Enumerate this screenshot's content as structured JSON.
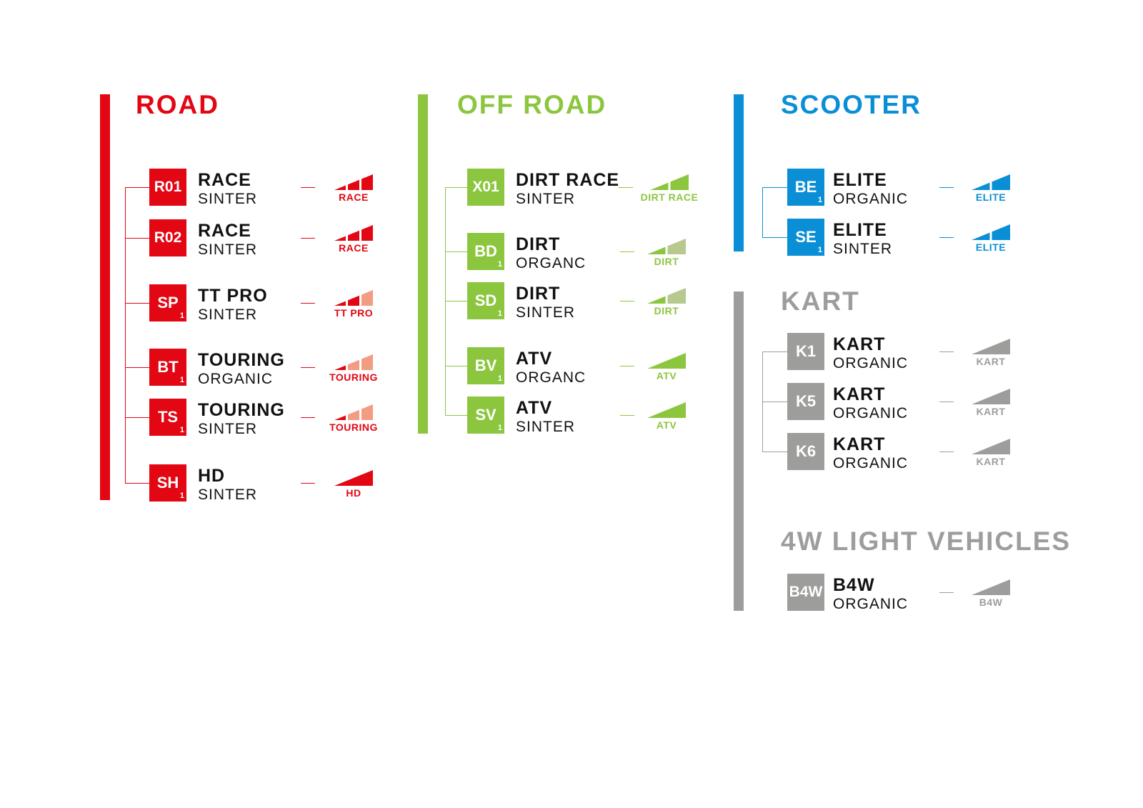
{
  "colors": {
    "road": "#e30613",
    "road_light": "#f29c82",
    "offroad": "#8cc63f",
    "offroad_light": "#b8c98f",
    "scooter": "#0a8fd6",
    "kart": "#9d9d9c"
  },
  "groups": [
    {
      "key": "road",
      "title": "ROAD",
      "color": "#e30613",
      "items": [
        {
          "code": "R01",
          "sub": "",
          "name": "RACE",
          "material": "SINTER",
          "label": "RACE",
          "segments": [
            1,
            1,
            1
          ]
        },
        {
          "code": "R02",
          "sub": "",
          "name": "RACE",
          "material": "SINTER",
          "label": "RACE",
          "segments": [
            1,
            1,
            1
          ]
        },
        {
          "code": "SP",
          "sub": "1",
          "name": "TT PRO",
          "material": "SINTER",
          "label": "TT PRO",
          "segments": [
            1,
            1,
            0
          ]
        },
        {
          "code": "BT",
          "sub": "1",
          "name": "TOURING",
          "material": "ORGANIC",
          "label": "TOURING",
          "segments": [
            1,
            0,
            0
          ]
        },
        {
          "code": "TS",
          "sub": "1",
          "name": "TOURING",
          "material": "SINTER",
          "label": "TOURING",
          "segments": [
            1,
            0,
            0
          ]
        },
        {
          "code": "SH",
          "sub": "1",
          "name": "HD",
          "material": "SINTER",
          "label": "HD",
          "segments": [
            1
          ]
        }
      ]
    },
    {
      "key": "offroad",
      "title": "OFF ROAD",
      "color": "#8cc63f",
      "items": [
        {
          "code": "X01",
          "sub": "",
          "name": "DIRT RACE",
          "material": "SINTER",
          "label": "DIRT RACE",
          "segments": [
            1,
            1
          ]
        },
        {
          "code": "BD",
          "sub": "1",
          "name": "DIRT",
          "material": "ORGANC",
          "label": "DIRT",
          "segments": [
            1,
            0
          ]
        },
        {
          "code": "SD",
          "sub": "1",
          "name": "DIRT",
          "material": "SINTER",
          "label": "DIRT",
          "segments": [
            1,
            0
          ]
        },
        {
          "code": "BV",
          "sub": "1",
          "name": "ATV",
          "material": "ORGANC",
          "label": "ATV",
          "segments": [
            1
          ]
        },
        {
          "code": "SV",
          "sub": "1",
          "name": "ATV",
          "material": "SINTER",
          "label": "ATV",
          "segments": [
            1
          ]
        }
      ]
    },
    {
      "key": "scooter",
      "title": "SCOOTER",
      "color": "#0a8fd6",
      "items": [
        {
          "code": "BE",
          "sub": "1",
          "name": "ELITE",
          "material": "ORGANIC",
          "label": "ELITE",
          "segments": [
            1,
            1
          ]
        },
        {
          "code": "SE",
          "sub": "1",
          "name": "ELITE",
          "material": "SINTER",
          "label": "ELITE",
          "segments": [
            1,
            1
          ]
        }
      ]
    },
    {
      "key": "kart",
      "title": "KART",
      "color": "#9d9d9c",
      "items": [
        {
          "code": "K1",
          "sub": "",
          "name": "KART",
          "material": "ORGANIC",
          "label": "KART",
          "segments": [
            1
          ]
        },
        {
          "code": "K5",
          "sub": "",
          "name": "KART",
          "material": "ORGANIC",
          "label": "KART",
          "segments": [
            1
          ]
        },
        {
          "code": "K6",
          "sub": "",
          "name": "KART",
          "material": "ORGANIC",
          "label": "KART",
          "segments": [
            1
          ]
        }
      ]
    },
    {
      "key": "light4w",
      "title": "4W LIGHT VEHICLES",
      "color": "#9d9d9c",
      "items": [
        {
          "code": "B4W",
          "sub": "",
          "name": "B4W",
          "material": "ORGANIC",
          "label": "B4W",
          "segments": [
            1
          ]
        }
      ]
    }
  ]
}
